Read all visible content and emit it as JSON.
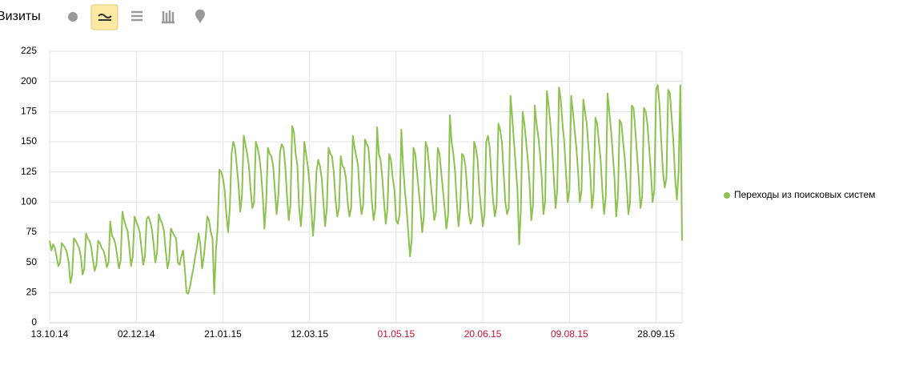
{
  "chart_data": {
    "type": "line",
    "title": "Визиты",
    "series": [
      {
        "name": "Переходы из поисковых систем",
        "color": "#8dc152",
        "values": [
          68,
          60,
          65,
          62,
          55,
          47,
          50,
          66,
          64,
          62,
          58,
          50,
          33,
          40,
          70,
          68,
          65,
          62,
          55,
          40,
          45,
          74,
          70,
          68,
          63,
          52,
          43,
          48,
          68,
          66,
          62,
          60,
          55,
          46,
          50,
          84,
          72,
          70,
          65,
          55,
          45,
          52,
          92,
          85,
          80,
          76,
          62,
          47,
          55,
          88,
          84,
          80,
          75,
          62,
          48,
          55,
          86,
          88,
          84,
          78,
          65,
          50,
          58,
          90,
          85,
          82,
          76,
          60,
          45,
          52,
          78,
          75,
          72,
          70,
          50,
          48,
          55,
          60,
          45,
          25,
          24,
          30,
          38,
          45,
          55,
          62,
          74,
          65,
          45,
          55,
          70,
          88,
          85,
          75,
          70,
          24,
          60,
          80,
          127,
          125,
          120,
          110,
          90,
          75,
          95,
          140,
          150,
          145,
          130,
          115,
          92,
          105,
          155,
          148,
          140,
          130,
          110,
          95,
          100,
          150,
          145,
          138,
          125,
          105,
          78,
          100,
          145,
          140,
          138,
          130,
          110,
          90,
          105,
          142,
          148,
          145,
          130,
          105,
          85,
          98,
          163,
          158,
          140,
          130,
          95,
          80,
          100,
          150,
          140,
          130,
          115,
          95,
          72,
          90,
          125,
          135,
          130,
          120,
          100,
          80,
          95,
          145,
          140,
          138,
          125,
          102,
          88,
          95,
          138,
          130,
          128,
          120,
          100,
          88,
          95,
          155,
          145,
          138,
          130,
          105,
          90,
          98,
          152,
          148,
          145,
          125,
          100,
          85,
          95,
          162,
          140,
          135,
          120,
          100,
          82,
          95,
          140,
          135,
          120,
          110,
          85,
          82,
          90,
          160,
          130,
          110,
          95,
          75,
          55,
          70,
          145,
          140,
          125,
          110,
          95,
          75,
          88,
          150,
          145,
          130,
          115,
          100,
          85,
          92,
          145,
          140,
          125,
          110,
          95,
          78,
          90,
          172,
          150,
          140,
          125,
          100,
          80,
          95,
          140,
          138,
          130,
          110,
          90,
          82,
          88,
          150,
          145,
          135,
          110,
          95,
          80,
          90,
          150,
          155,
          145,
          120,
          100,
          88,
          98,
          165,
          160,
          150,
          125,
          100,
          90,
          95,
          188,
          170,
          150,
          130,
          110,
          65,
          95,
          175,
          165,
          150,
          135,
          115,
          85,
          98,
          180,
          165,
          155,
          140,
          120,
          90,
          100,
          192,
          180,
          165,
          145,
          120,
          95,
          110,
          195,
          185,
          165,
          150,
          125,
          100,
          110,
          188,
          175,
          160,
          145,
          125,
          100,
          110,
          185,
          175,
          165,
          145,
          125,
          95,
          108,
          170,
          165,
          150,
          135,
          110,
          90,
          105,
          190,
          175,
          160,
          140,
          120,
          88,
          105,
          168,
          165,
          150,
          135,
          115,
          90,
          100,
          180,
          178,
          160,
          140,
          120,
          95,
          105,
          178,
          175,
          165,
          145,
          125,
          100,
          110,
          193,
          197,
          180,
          150,
          125,
          112,
          120,
          193,
          190,
          170,
          150,
          120,
          102,
          125,
          197,
          68
        ]
      }
    ],
    "xlim": [
      0,
      365
    ],
    "xticks": [
      {
        "value": 0,
        "label": "13.10.14",
        "color": "#000000"
      },
      {
        "value": 50,
        "label": "02.12.14",
        "color": "#000000"
      },
      {
        "value": 100,
        "label": "21.01.15",
        "color": "#000000"
      },
      {
        "value": 150,
        "label": "12.03.15",
        "color": "#000000"
      },
      {
        "value": 200,
        "label": "01.05.15",
        "color": "#c8102e"
      },
      {
        "value": 250,
        "label": "20.06.15",
        "color": "#c8102e"
      },
      {
        "value": 300,
        "label": "09.08.15",
        "color": "#c8102e"
      },
      {
        "value": 350,
        "label": "28.09.15",
        "color": "#000000"
      }
    ],
    "ylim": [
      0,
      225
    ],
    "yticks": [
      0,
      25,
      50,
      75,
      100,
      125,
      150,
      175,
      200,
      225
    ],
    "grid": true,
    "legend": "right"
  }
}
